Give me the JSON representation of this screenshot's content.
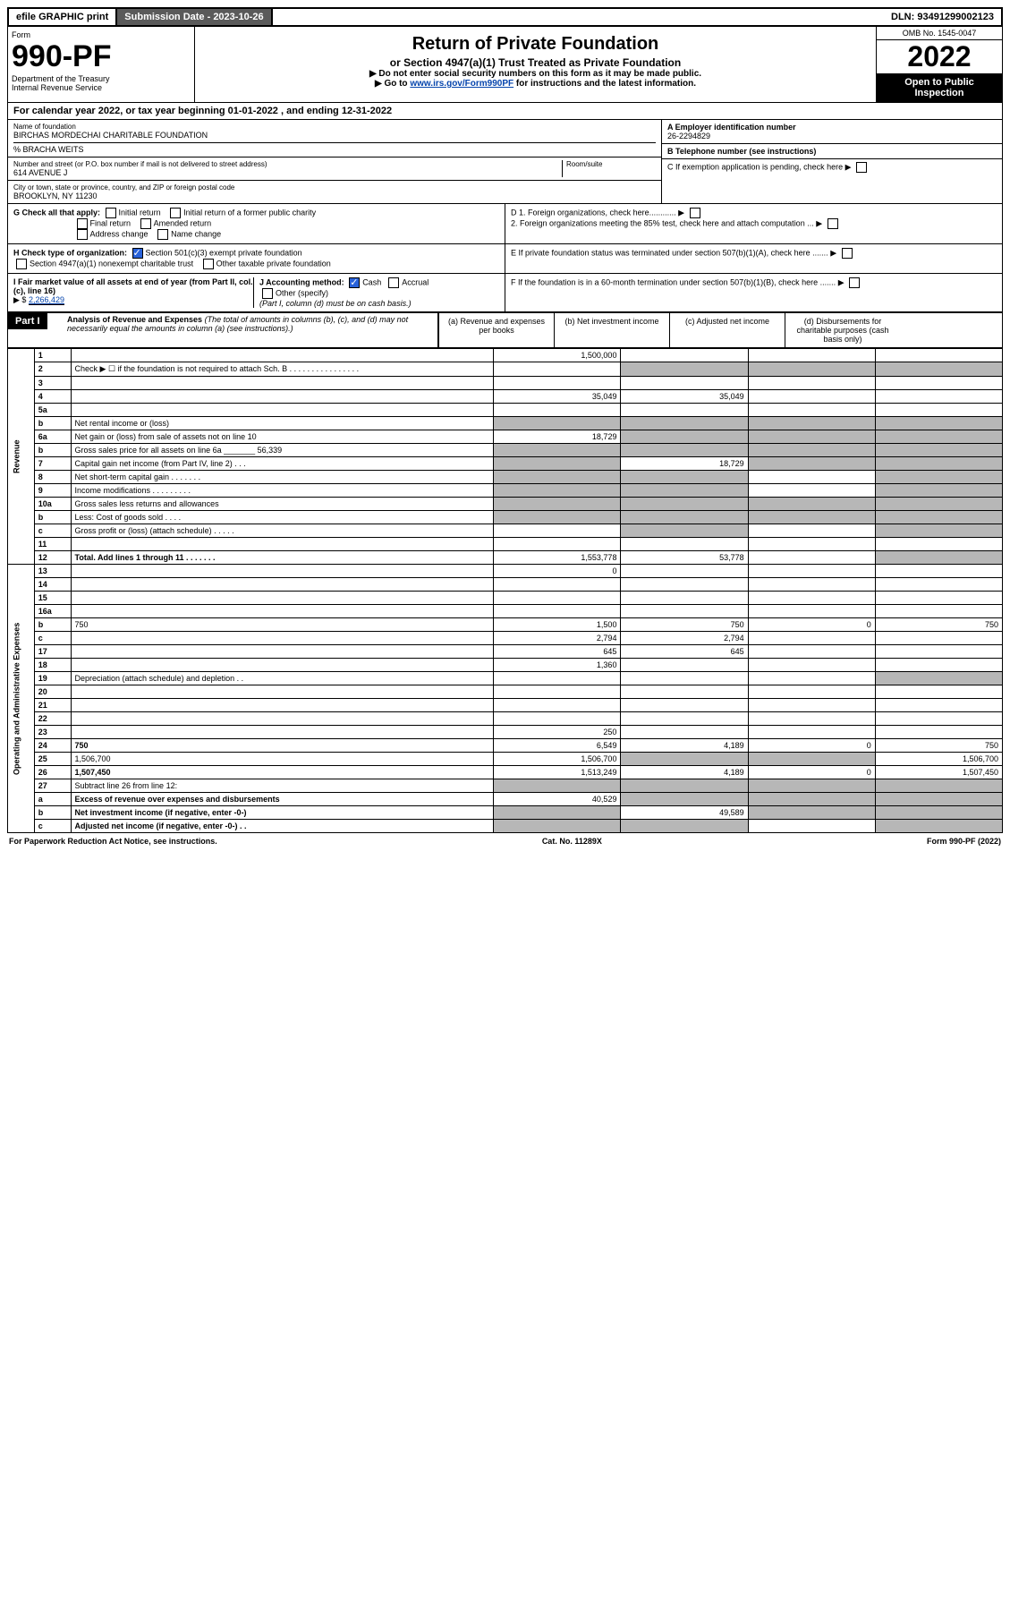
{
  "topbar": {
    "efile": "efile GRAPHIC print",
    "submission_label": "Submission Date - 2023-10-26",
    "dln": "DLN: 93491299002123"
  },
  "header": {
    "form_label": "Form",
    "form_num": "990-PF",
    "dept": "Department of the Treasury",
    "irs": "Internal Revenue Service",
    "title": "Return of Private Foundation",
    "subtitle": "or Section 4947(a)(1) Trust Treated as Private Foundation",
    "inst1": "▶ Do not enter social security numbers on this form as it may be made public.",
    "inst2_pre": "▶ Go to ",
    "inst2_link": "www.irs.gov/Form990PF",
    "inst2_post": " for instructions and the latest information.",
    "omb": "OMB No. 1545-0047",
    "year": "2022",
    "open": "Open to Public Inspection"
  },
  "cal_year": {
    "pre": "For calendar year 2022, or tax year beginning ",
    "begin": "01-01-2022",
    "mid": " , and ending ",
    "end": "12-31-2022"
  },
  "info": {
    "name_label": "Name of foundation",
    "name": "BIRCHAS MORDECHAI CHARITABLE FOUNDATION",
    "care_of": "% BRACHA WEITS",
    "addr_label": "Number and street (or P.O. box number if mail is not delivered to street address)",
    "addr": "614 AVENUE J",
    "room_label": "Room/suite",
    "city_label": "City or town, state or province, country, and ZIP or foreign postal code",
    "city": "BROOKLYN, NY  11230",
    "ein_label": "A Employer identification number",
    "ein": "26-2294829",
    "tel_label": "B Telephone number (see instructions)",
    "c_label": "C If exemption application is pending, check here",
    "d1": "D 1. Foreign organizations, check here............",
    "d2": "2. Foreign organizations meeting the 85% test, check here and attach computation ...",
    "e_label": "E  If private foundation status was terminated under section 507(b)(1)(A), check here .......",
    "f_label": "F  If the foundation is in a 60-month termination under section 507(b)(1)(B), check here ......."
  },
  "g": {
    "label": "G Check all that apply:",
    "o1": "Initial return",
    "o2": "Final return",
    "o3": "Address change",
    "o4": "Initial return of a former public charity",
    "o5": "Amended return",
    "o6": "Name change"
  },
  "h": {
    "label": "H Check type of organization:",
    "o1": "Section 501(c)(3) exempt private foundation",
    "o2": "Section 4947(a)(1) nonexempt charitable trust",
    "o3": "Other taxable private foundation"
  },
  "i": {
    "label": "I Fair market value of all assets at end of year (from Part II, col. (c), line 16)",
    "val_label": "▶ $",
    "val": "2,266,429"
  },
  "j": {
    "label": "J Accounting method:",
    "cash": "Cash",
    "accrual": "Accrual",
    "other": "Other (specify)",
    "note": "(Part I, column (d) must be on cash basis.)"
  },
  "part1": {
    "label": "Part I",
    "title": "Analysis of Revenue and Expenses",
    "note": "(The total of amounts in columns (b), (c), and (d) may not necessarily equal the amounts in column (a) (see instructions).)",
    "col_a": "(a)  Revenue and expenses per books",
    "col_b": "(b)  Net investment income",
    "col_c": "(c)  Adjusted net income",
    "col_d": "(d)  Disbursements for charitable purposes (cash basis only)"
  },
  "side": {
    "revenue": "Revenue",
    "expenses": "Operating and Administrative Expenses"
  },
  "rows": [
    {
      "n": "1",
      "d": "",
      "a": "1,500,000",
      "b": "",
      "c": ""
    },
    {
      "n": "2",
      "d": "Check ▶ ☐ if the foundation is not required to attach Sch. B  . . . . . . . . . . . . . . . .",
      "shade_bcd": true
    },
    {
      "n": "3",
      "d": "",
      "a": "",
      "b": "",
      "c": ""
    },
    {
      "n": "4",
      "d": "",
      "a": "35,049",
      "b": "35,049",
      "c": ""
    },
    {
      "n": "5a",
      "d": "",
      "a": "",
      "b": "",
      "c": ""
    },
    {
      "n": "b",
      "d": "Net rental income or (loss)",
      "shade_all": true
    },
    {
      "n": "6a",
      "d": "Net gain or (loss) from sale of assets not on line 10",
      "a": "18,729",
      "shade_bcd": true
    },
    {
      "n": "b",
      "d": "Gross sales price for all assets on line 6a _______ 56,339",
      "shade_all": true
    },
    {
      "n": "7",
      "d": "Capital gain net income (from Part IV, line 2)  . . .",
      "shade_a": true,
      "b": "18,729",
      "shade_cd": true
    },
    {
      "n": "8",
      "d": "Net short-term capital gain  . . . . . . .",
      "shade_ab": true,
      "c": "",
      "shade_d": true
    },
    {
      "n": "9",
      "d": "Income modifications  . . . . . . . . .",
      "shade_ab": true,
      "c": "",
      "shade_d": true
    },
    {
      "n": "10a",
      "d": "Gross sales less returns and allowances",
      "shade_all": true
    },
    {
      "n": "b",
      "d": "Less: Cost of goods sold  . . . .",
      "shade_all": true
    },
    {
      "n": "c",
      "d": "Gross profit or (loss) (attach schedule)  . . . . .",
      "a": "",
      "shade_b": true,
      "c": "",
      "shade_d": true
    },
    {
      "n": "11",
      "d": "",
      "a": "",
      "b": "",
      "c": ""
    },
    {
      "n": "12",
      "d": "Total. Add lines 1 through 11  . . . . . . .",
      "bold": true,
      "a": "1,553,778",
      "b": "53,778",
      "c": "",
      "shade_d": true
    },
    {
      "n": "13",
      "d": "",
      "a": "0",
      "b": "",
      "c": ""
    },
    {
      "n": "14",
      "d": "",
      "a": "",
      "b": "",
      "c": ""
    },
    {
      "n": "15",
      "d": "",
      "a": "",
      "b": "",
      "c": ""
    },
    {
      "n": "16a",
      "d": "",
      "a": "",
      "b": "",
      "c": ""
    },
    {
      "n": "b",
      "d": "750",
      "a": "1,500",
      "b": "750",
      "c": "0"
    },
    {
      "n": "c",
      "d": "",
      "a": "2,794",
      "b": "2,794",
      "c": ""
    },
    {
      "n": "17",
      "d": "",
      "a": "645",
      "b": "645",
      "c": ""
    },
    {
      "n": "18",
      "d": "",
      "a": "1,360",
      "b": "",
      "c": ""
    },
    {
      "n": "19",
      "d": "Depreciation (attach schedule) and depletion  . .",
      "a": "",
      "b": "",
      "c": "",
      "shade_d": true
    },
    {
      "n": "20",
      "d": "",
      "a": "",
      "b": "",
      "c": ""
    },
    {
      "n": "21",
      "d": "",
      "a": "",
      "b": "",
      "c": ""
    },
    {
      "n": "22",
      "d": "",
      "a": "",
      "b": "",
      "c": ""
    },
    {
      "n": "23",
      "d": "",
      "a": "250",
      "b": "",
      "c": ""
    },
    {
      "n": "24",
      "d": "750",
      "bold": true,
      "a": "6,549",
      "b": "4,189",
      "c": "0"
    },
    {
      "n": "25",
      "d": "1,506,700",
      "a": "1,506,700",
      "shade_bc": true
    },
    {
      "n": "26",
      "d": "1,507,450",
      "bold": true,
      "a": "1,513,249",
      "b": "4,189",
      "c": "0"
    },
    {
      "n": "27",
      "d": "Subtract line 26 from line 12:",
      "shade_all": true
    },
    {
      "n": "a",
      "d": "Excess of revenue over expenses and disbursements",
      "bold": true,
      "a": "40,529",
      "shade_bcd": true
    },
    {
      "n": "b",
      "d": "Net investment income (if negative, enter -0-)",
      "bold": true,
      "shade_a": true,
      "b": "49,589",
      "shade_cd": true
    },
    {
      "n": "c",
      "d": "Adjusted net income (if negative, enter -0-)  . .",
      "bold": true,
      "shade_ab": true,
      "c": "",
      "shade_d": true
    }
  ],
  "footer": {
    "left": "For Paperwork Reduction Act Notice, see instructions.",
    "mid": "Cat. No. 11289X",
    "right": "Form 990-PF (2022)"
  }
}
